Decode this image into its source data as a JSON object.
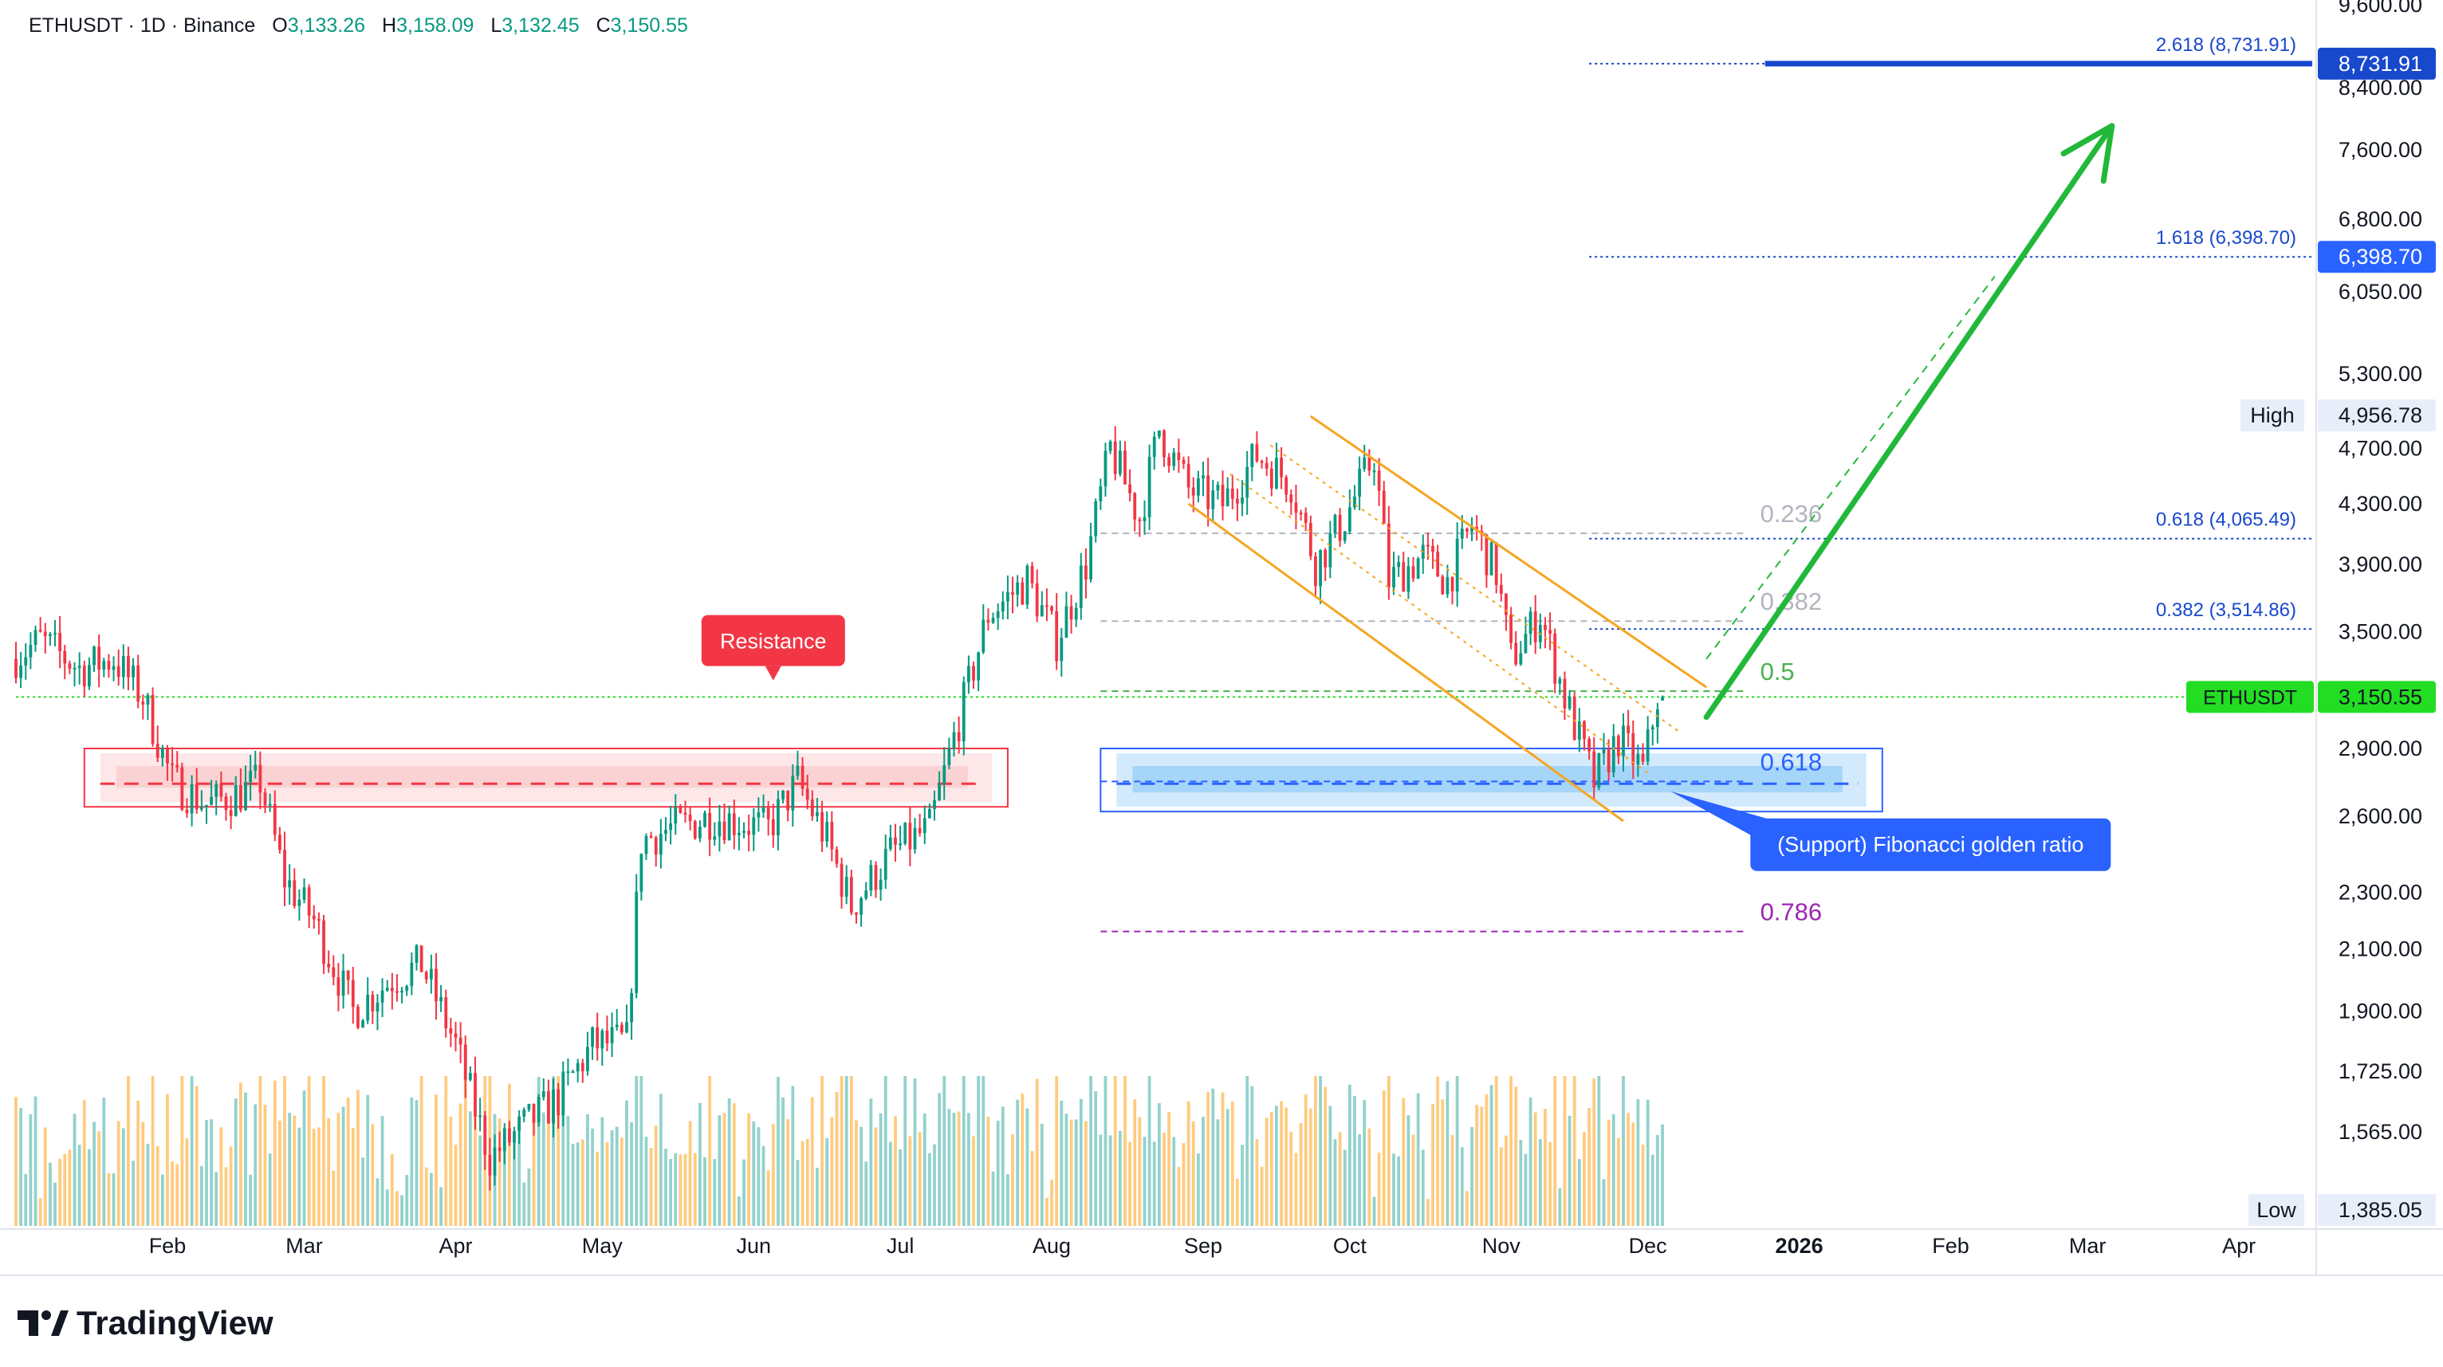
{
  "header": {
    "symbol_line": "ETHUSDT · 1D · Binance",
    "o_key": "O",
    "o_val": "3,133.26",
    "h_key": "H",
    "h_val": "3,158.09",
    "l_key": "L",
    "l_val": "3,132.45",
    "c_key": "C",
    "c_val": "3,150.55"
  },
  "brand": {
    "name": "TradingView"
  },
  "colors": {
    "up": "#26a69a",
    "down": "#ef5350",
    "bull_candle": "#089981",
    "bear_candle": "#f23645",
    "fib_blue": "#1848cc",
    "arrow_green": "#22b83a",
    "resistance_red": "#f23645",
    "support_blue": "#2962ff",
    "channel_orange": "#f5a623",
    "last_price_green": "#22dd22"
  },
  "chart_data": {
    "type": "candlestick",
    "symbol": "ETHUSDT",
    "interval": "1D",
    "exchange": "Binance",
    "y_scale": "log",
    "ylim": [
      1385.05,
      9600
    ],
    "y_ticks": [
      "9,600.00",
      "8,400.00",
      "7,600.00",
      "6,800.00",
      "6,050.00",
      "5,300.00",
      "4,700.00",
      "4,300.00",
      "3,900.00",
      "3,500.00",
      "2,900.00",
      "2,600.00",
      "2,300.00",
      "2,100.00",
      "1,900.00",
      "1,725.00",
      "1,565.00"
    ],
    "y_tick_values": [
      9600,
      8400,
      7600,
      6800,
      6050,
      5300,
      4700,
      4300,
      3900,
      3500,
      2900,
      2600,
      2300,
      2100,
      1900,
      1725,
      1565
    ],
    "x_ticks": [
      {
        "label": "Feb",
        "date": "2025-02-01",
        "bold": false
      },
      {
        "label": "Mar",
        "date": "2025-03-01",
        "bold": false
      },
      {
        "label": "Apr",
        "date": "2025-04-01",
        "bold": false
      },
      {
        "label": "May",
        "date": "2025-05-01",
        "bold": false
      },
      {
        "label": "Jun",
        "date": "2025-06-01",
        "bold": false
      },
      {
        "label": "Jul",
        "date": "2025-07-01",
        "bold": false
      },
      {
        "label": "Aug",
        "date": "2025-08-01",
        "bold": false
      },
      {
        "label": "Sep",
        "date": "2025-09-01",
        "bold": false
      },
      {
        "label": "Oct",
        "date": "2025-10-01",
        "bold": false
      },
      {
        "label": "Nov",
        "date": "2025-11-01",
        "bold": false
      },
      {
        "label": "Dec",
        "date": "2025-12-01",
        "bold": false
      },
      {
        "label": "2026",
        "date": "2026-01-01",
        "bold": true
      },
      {
        "label": "Feb",
        "date": "2026-02-01",
        "bold": false
      },
      {
        "label": "Mar",
        "date": "2026-03-01",
        "bold": false
      },
      {
        "label": "Apr",
        "date": "2026-04-01",
        "bold": false
      }
    ],
    "x_range": [
      "2025-01-01",
      "2026-04-16"
    ],
    "price_path": [
      {
        "date": "2025-01-01",
        "close": 3350
      },
      {
        "date": "2025-01-07",
        "close": 3450
      },
      {
        "date": "2025-01-15",
        "close": 3300
      },
      {
        "date": "2025-01-22",
        "close": 3350
      },
      {
        "date": "2025-01-28",
        "close": 3150
      },
      {
        "date": "2025-02-03",
        "close": 2750
      },
      {
        "date": "2025-02-10",
        "close": 2650
      },
      {
        "date": "2025-02-17",
        "close": 2700
      },
      {
        "date": "2025-02-21",
        "close": 2750
      },
      {
        "date": "2025-02-26",
        "close": 2350
      },
      {
        "date": "2025-03-04",
        "close": 2200
      },
      {
        "date": "2025-03-12",
        "close": 1900
      },
      {
        "date": "2025-03-20",
        "close": 2000
      },
      {
        "date": "2025-03-26",
        "close": 2050
      },
      {
        "date": "2025-04-02",
        "close": 1800
      },
      {
        "date": "2025-04-09",
        "close": 1500
      },
      {
        "date": "2025-04-16",
        "close": 1580
      },
      {
        "date": "2025-04-23",
        "close": 1650
      },
      {
        "date": "2025-04-30",
        "close": 1800
      },
      {
        "date": "2025-05-07",
        "close": 1810
      },
      {
        "date": "2025-05-10",
        "close": 2500
      },
      {
        "date": "2025-05-16",
        "close": 2550
      },
      {
        "date": "2025-05-25",
        "close": 2600
      },
      {
        "date": "2025-06-05",
        "close": 2550
      },
      {
        "date": "2025-06-11",
        "close": 2750
      },
      {
        "date": "2025-06-17",
        "close": 2500
      },
      {
        "date": "2025-06-22",
        "close": 2250
      },
      {
        "date": "2025-06-30",
        "close": 2450
      },
      {
        "date": "2025-07-08",
        "close": 2550
      },
      {
        "date": "2025-07-13",
        "close": 2950
      },
      {
        "date": "2025-07-20",
        "close": 3600
      },
      {
        "date": "2025-07-28",
        "close": 3800
      },
      {
        "date": "2025-08-03",
        "close": 3450
      },
      {
        "date": "2025-08-09",
        "close": 3900
      },
      {
        "date": "2025-08-14",
        "close": 4700
      },
      {
        "date": "2025-08-20",
        "close": 4200
      },
      {
        "date": "2025-08-24",
        "close": 4850
      },
      {
        "date": "2025-08-30",
        "close": 4400
      },
      {
        "date": "2025-09-06",
        "close": 4300
      },
      {
        "date": "2025-09-13",
        "close": 4650
      },
      {
        "date": "2025-09-20",
        "close": 4450
      },
      {
        "date": "2025-09-25",
        "close": 3900
      },
      {
        "date": "2025-10-01",
        "close": 4200
      },
      {
        "date": "2025-10-07",
        "close": 4650
      },
      {
        "date": "2025-10-10",
        "close": 3800
      },
      {
        "date": "2025-10-17",
        "close": 3950
      },
      {
        "date": "2025-10-22",
        "close": 3800
      },
      {
        "date": "2025-10-27",
        "close": 4150
      },
      {
        "date": "2025-11-01",
        "close": 3850
      },
      {
        "date": "2025-11-04",
        "close": 3350
      },
      {
        "date": "2025-11-10",
        "close": 3600
      },
      {
        "date": "2025-11-15",
        "close": 3150
      },
      {
        "date": "2025-11-21",
        "close": 2750
      },
      {
        "date": "2025-11-26",
        "close": 2950
      },
      {
        "date": "2025-12-01",
        "close": 2800
      },
      {
        "date": "2025-12-04",
        "close": 3150
      }
    ],
    "volume_shape": {
      "max_fraction_of_pane": 1.0
    },
    "ohlc_last": {
      "open": 3133.26,
      "high": 3158.09,
      "low": 3132.45,
      "close": 3150.55
    },
    "fib_extensions": [
      {
        "level": "2.618",
        "value": 8731.91,
        "label": "2.618 (8,731.91)",
        "tag": "8,731.91"
      },
      {
        "level": "1.618",
        "value": 6398.7,
        "label": "1.618 (6,398.70)",
        "tag": "6,398.70"
      },
      {
        "level": "0.618",
        "value": 4065.49,
        "label": "0.618 (4,065.49)"
      },
      {
        "level": "0.382",
        "value": 3514.86,
        "label": "0.382 (3,514.86)"
      }
    ],
    "fib_retracements": [
      {
        "label": "0.236",
        "value": 4100,
        "color": "#b2b5be"
      },
      {
        "label": "0.382",
        "value": 3560,
        "color": "#b2b5be"
      },
      {
        "label": "0.5",
        "value": 3180,
        "color": "#4caf50"
      },
      {
        "label": "0.618",
        "value": 2750,
        "color": "#2962ff"
      },
      {
        "label": "0.786",
        "value": 2160,
        "color": "#9c27b0"
      }
    ],
    "resistance_zone": {
      "low": 2640,
      "high": 2900,
      "mid": 2740,
      "from": "2025-01-15",
      "to": "2025-07-23"
    },
    "support_zone": {
      "low": 2620,
      "high": 2900,
      "mid": 2740,
      "from": "2025-08-11",
      "to": "2026-01-18"
    },
    "channel": {
      "upper": [
        [
          "2025-09-23",
          4950
        ],
        [
          "2025-12-13",
          3200
        ]
      ],
      "lower": [
        [
          "2025-08-29",
          4300
        ],
        [
          "2025-11-26",
          2580
        ]
      ]
    },
    "projection_arrow": {
      "from": [
        "2025-12-13",
        3050
      ],
      "to": [
        "2026-03-06",
        7900
      ]
    },
    "projection_dashed": {
      "from": [
        "2025-12-13",
        3350
      ],
      "to": [
        "2026-02-10",
        6200
      ]
    },
    "high_low_marks": {
      "high_label": "High",
      "high_value": "4,956.78",
      "low_label": "Low",
      "low_value": "1,385.05"
    },
    "last_price": {
      "symbol": "ETHUSDT",
      "value": "3,150.55",
      "price": 3150.55
    },
    "annotations": [
      {
        "id": "resistance",
        "text": "Resistance"
      },
      {
        "id": "support",
        "text": "(Support) Fibonacci golden ratio"
      }
    ]
  }
}
